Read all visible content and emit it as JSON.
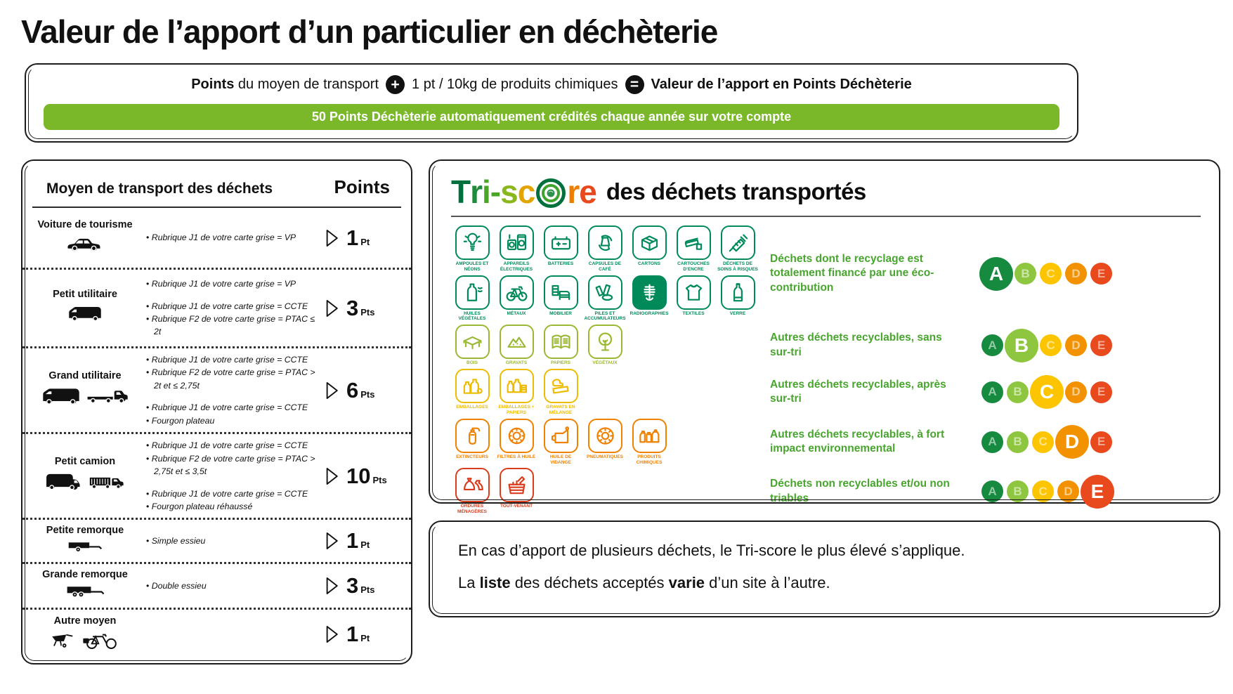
{
  "title": "Valeur de l’apport d’un particulier en déchèterie",
  "formula": {
    "prefix_bold": "Points",
    "prefix_rest": " du moyen de transport",
    "plus_glyph": "+",
    "middle": "1 pt / 10kg de produits chimiques",
    "equals_glyph": "=",
    "result_bold": "Valeur de l’apport en Points Déchèterie",
    "banner": "50 Points Déchèterie automatiquement crédités chaque année sur votre compte",
    "banner_color": "#7ab829"
  },
  "transport_table": {
    "header_left": "Moyen de transport des déchets",
    "header_right": "Points",
    "rows": [
      {
        "label": "Voiture de tourisme",
        "icons": [
          "car"
        ],
        "bullets": [
          [
            "Rubrique J1 de votre carte grise = VP"
          ]
        ],
        "points": "1",
        "unit": "Pt"
      },
      {
        "label": "Petit utilitaire",
        "icons": [
          "small-van"
        ],
        "bullets": [
          [
            "Rubrique J1 de votre carte grise = VP"
          ],
          [
            "Rubrique J1 de votre carte grise = CCTE",
            "Rubrique F2 de votre carte grise = PTAC ≤ 2t"
          ]
        ],
        "points": "3",
        "unit": "Pts"
      },
      {
        "label": "Grand utilitaire",
        "icons": [
          "van",
          "flatbed-truck"
        ],
        "bullets": [
          [
            "Rubrique J1 de votre carte grise = CCTE",
            "Rubrique F2 de votre carte grise = PTAC > 2t et ≤ 2,75t"
          ],
          [
            "Rubrique J1 de votre carte grise = CCTE",
            "Fourgon plateau"
          ]
        ],
        "points": "6",
        "unit": "Pts"
      },
      {
        "label": "Petit camion",
        "icons": [
          "big-van",
          "stake-truck"
        ],
        "bullets": [
          [
            "Rubrique J1 de votre carte grise = CCTE",
            "Rubrique F2 de votre carte grise = PTAC > 2,75t et ≤ 3,5t"
          ],
          [
            "Rubrique J1 de votre carte grise = CCTE",
            "Fourgon plateau réhaussé"
          ]
        ],
        "points": "10",
        "unit": "Pts"
      },
      {
        "label": "Petite remorque",
        "icons": [
          "single-axle-trailer"
        ],
        "bullets": [
          [
            "Simple essieu"
          ]
        ],
        "points": "1",
        "unit": "Pt"
      },
      {
        "label": "Grande remorque",
        "icons": [
          "double-axle-trailer"
        ],
        "bullets": [
          [
            "Double essieu"
          ]
        ],
        "points": "3",
        "unit": "Pts"
      },
      {
        "label": "Autre moyen",
        "icons": [
          "wheelbarrow",
          "cargo-bike"
        ],
        "bullets": [],
        "points": "1",
        "unit": "Pt"
      }
    ]
  },
  "triscore": {
    "logo": {
      "pre": [
        {
          "ch": "T",
          "color": "#00703c"
        },
        {
          "ch": "r",
          "color": "#1e8c3a"
        },
        {
          "ch": "i",
          "color": "#4aa528"
        },
        {
          "ch": "-",
          "color": "#4aa528"
        },
        {
          "ch": "s",
          "color": "#8ab71e"
        },
        {
          "ch": "c",
          "color": "#e3a400"
        }
      ],
      "post": [
        {
          "ch": "r",
          "color": "#ef7d00"
        },
        {
          "ch": "e",
          "color": "#e8491d"
        }
      ]
    },
    "suffix": "des déchets transportés",
    "desc_color": "#48a52e",
    "scale": [
      {
        "letter": "A",
        "color": "#168a3e"
      },
      {
        "letter": "B",
        "color": "#8ec63f"
      },
      {
        "letter": "C",
        "color": "#fdc500"
      },
      {
        "letter": "D",
        "color": "#f39200"
      },
      {
        "letter": "E",
        "color": "#e8491d"
      }
    ],
    "bands": [
      {
        "grade": "A",
        "color": "#008a5a",
        "desc": "Déchets dont le recyclage est totalement financé par une éco-contribution",
        "icons": [
          {
            "label": "AMPOULES ET NÉONS",
            "glyph": "bulb"
          },
          {
            "label": "APPAREILS ÉLECTRIQUES",
            "glyph": "appliance"
          },
          {
            "label": "BATTERIES",
            "glyph": "battery"
          },
          {
            "label": "CAPSULES DE CAFÉ",
            "glyph": "capsule"
          },
          {
            "label": "CARTONS",
            "glyph": "box"
          },
          {
            "label": "CARTOUCHES D’ENCRE",
            "glyph": "cartridge"
          },
          {
            "label": "DÉCHETS DE SOINS À RISQUES",
            "glyph": "syringe"
          },
          {
            "label": "HUILES VÉGÉTALES",
            "glyph": "oil-bottle"
          },
          {
            "label": "MÉTAUX",
            "glyph": "bike"
          },
          {
            "label": "MOBILIER",
            "glyph": "bed"
          },
          {
            "label": "PILES ET ACCUMULATEURS",
            "glyph": "piles"
          },
          {
            "label": "RADIOGRAPHIES",
            "glyph": "xray",
            "filled": true
          },
          {
            "label": "TEXTILES",
            "glyph": "shirt"
          },
          {
            "label": "VERRE",
            "glyph": "bottle"
          }
        ]
      },
      {
        "grade": "B",
        "color": "#9ab832",
        "desc": "Autres déchets recyclables, sans sur-tri",
        "icons": [
          {
            "label": "BOIS",
            "glyph": "pallet"
          },
          {
            "label": "GRAVATS",
            "glyph": "rubble"
          },
          {
            "label": "PAPIERS",
            "glyph": "book"
          },
          {
            "label": "VÉGÉTAUX",
            "glyph": "tree"
          }
        ]
      },
      {
        "grade": "C",
        "color": "#edbb00",
        "desc": "Autres déchets recyclables, après sur-tri",
        "icons": [
          {
            "label": "EMBALLAGES",
            "glyph": "bottles"
          },
          {
            "label": "EMBALLAGES + PAPIERS",
            "glyph": "mixed-pack"
          },
          {
            "label": "GRAVATS EN MÉLANGE",
            "glyph": "rubble-mix"
          }
        ]
      },
      {
        "grade": "D",
        "color": "#ef8103",
        "desc": "Autres déchets recyclables, à fort impact environnemental",
        "icons": [
          {
            "label": "EXTINCTEURS",
            "glyph": "extinguisher"
          },
          {
            "label": "FILTRES À HUILE",
            "glyph": "filter"
          },
          {
            "label": "HUILE DE VIDANGE",
            "glyph": "oil-can"
          },
          {
            "label": "PNEUMATIQUES",
            "glyph": "tire"
          },
          {
            "label": "PRODUITS CHIMIQUES",
            "glyph": "chemicals"
          }
        ]
      },
      {
        "grade": "E",
        "color": "#d93d1e",
        "desc": "Déchets non recyclables  et/ou non triables",
        "icons": [
          {
            "label": "ORDURES MÉNAGÈRES",
            "glyph": "trash-bags"
          },
          {
            "label": "TOUT-VENANT",
            "glyph": "basket"
          }
        ]
      }
    ]
  },
  "footer": {
    "line1": "En cas d’apport de plusieurs déchets, le Tri-score le plus élevé s’applique.",
    "line2_segments": [
      {
        "text": "La ",
        "bold": false
      },
      {
        "text": "liste",
        "bold": true
      },
      {
        "text": " des déchets acceptés ",
        "bold": false
      },
      {
        "text": "varie",
        "bold": true
      },
      {
        "text": " d’un site à l’autre.",
        "bold": false
      }
    ]
  }
}
